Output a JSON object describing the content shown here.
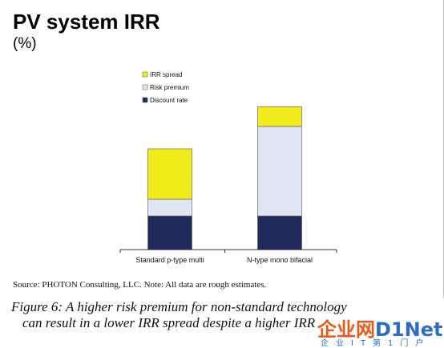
{
  "chart": {
    "title": "PV system IRR",
    "subtitle": "(%)"
  },
  "source": "Source: PHOTON Consulting, LLC. Note: All data are rough estimates.",
  "caption": {
    "line1": "Figure 6: A higher risk premium for non-standard technology",
    "line2": "can result in a lower IRR spread despite a higher IRR"
  },
  "watermark": {
    "main_a": "企业网",
    "main_b": "D1Net",
    "sub": "企业IT第1门户"
  },
  "colors": {
    "irr_spread": "#f3ec1c",
    "risk_premium": "#dde6f2",
    "discount_rate": "#1e2b5c"
  },
  "chart_data": {
    "type": "bar",
    "stacked": true,
    "categories": [
      "Standard p-type multi",
      "N-type mono bifacial"
    ],
    "series": [
      {
        "name": "Discount rate",
        "values": [
          6,
          6
        ],
        "color": "#1e2b5c"
      },
      {
        "name": "Risk premium",
        "values": [
          3,
          16
        ],
        "color": "#dde6f2"
      },
      {
        "name": "IRR spread",
        "values": [
          9,
          3.5
        ],
        "color": "#f3ec1c"
      }
    ],
    "legend_order": [
      "IRR spread",
      "Risk premium",
      "Discount rate"
    ],
    "legend_position": "top-left",
    "ylim": [
      0,
      26
    ],
    "grid": false
  }
}
